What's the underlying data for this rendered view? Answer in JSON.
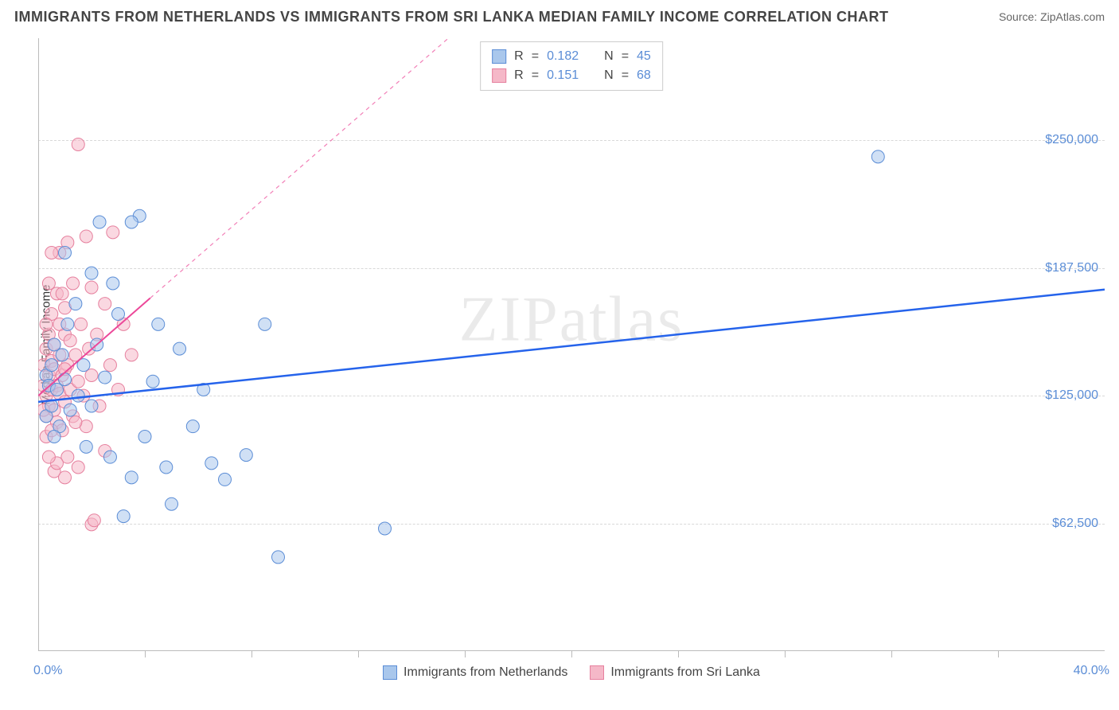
{
  "header": {
    "title": "IMMIGRANTS FROM NETHERLANDS VS IMMIGRANTS FROM SRI LANKA MEDIAN FAMILY INCOME CORRELATION CHART",
    "source": "Source: ZipAtlas.com"
  },
  "watermark": "ZIPatlas",
  "chart": {
    "type": "scatter-with-regression",
    "xlabel": "",
    "ylabel": "Median Family Income",
    "xlim": [
      0,
      40
    ],
    "ylim": [
      0,
      300000
    ],
    "x_tick_labels": {
      "start": "0.0%",
      "end": "40.0%"
    },
    "x_minor_ticks": [
      4,
      8,
      12,
      16,
      20,
      24,
      28,
      32,
      36
    ],
    "y_ticks": [
      62500,
      125000,
      187500,
      250000
    ],
    "y_tick_labels": [
      "$62,500",
      "$125,000",
      "$187,500",
      "$250,000"
    ],
    "grid_color": "#d8d8d8",
    "axis_color": "#bbbbbb",
    "background_color": "#ffffff",
    "tick_label_color": "#5b8dd6",
    "axis_label_color": "#333333",
    "marker_radius": 8,
    "marker_opacity": 0.55,
    "series": [
      {
        "name": "Immigrants from Netherlands",
        "fill_color": "#a9c7ec",
        "stroke_color": "#5b8dd6",
        "reg_line_color": "#2563eb",
        "reg_line_width": 2.5,
        "reg_line_dash": "none",
        "reg_line": {
          "x1": 0,
          "y1": 122000,
          "x2": 40,
          "y2": 177000
        },
        "stats": {
          "R": "0.182",
          "N": "45"
        },
        "points": [
          [
            0.3,
            115000
          ],
          [
            0.3,
            135000
          ],
          [
            0.4,
            130000
          ],
          [
            0.5,
            140000
          ],
          [
            0.5,
            120000
          ],
          [
            0.6,
            150000
          ],
          [
            0.7,
            128000
          ],
          [
            0.8,
            110000
          ],
          [
            0.9,
            145000
          ],
          [
            1.0,
            133000
          ],
          [
            1.1,
            160000
          ],
          [
            1.2,
            118000
          ],
          [
            1.4,
            170000
          ],
          [
            1.5,
            125000
          ],
          [
            1.7,
            140000
          ],
          [
            1.8,
            100000
          ],
          [
            2.0,
            185000
          ],
          [
            2.2,
            150000
          ],
          [
            2.3,
            210000
          ],
          [
            2.5,
            134000
          ],
          [
            2.7,
            95000
          ],
          [
            2.8,
            180000
          ],
          [
            3.0,
            165000
          ],
          [
            3.2,
            66000
          ],
          [
            3.5,
            85000
          ],
          [
            3.8,
            213000
          ],
          [
            4.0,
            105000
          ],
          [
            4.3,
            132000
          ],
          [
            4.5,
            160000
          ],
          [
            4.8,
            90000
          ],
          [
            5.0,
            72000
          ],
          [
            5.3,
            148000
          ],
          [
            5.8,
            110000
          ],
          [
            6.2,
            128000
          ],
          [
            6.5,
            92000
          ],
          [
            7.0,
            84000
          ],
          [
            7.8,
            96000
          ],
          [
            8.5,
            160000
          ],
          [
            9.0,
            46000
          ],
          [
            13.0,
            60000
          ],
          [
            31.5,
            242000
          ],
          [
            3.5,
            210000
          ],
          [
            1.0,
            195000
          ],
          [
            0.6,
            105000
          ],
          [
            2.0,
            120000
          ]
        ]
      },
      {
        "name": "Immigrants from Sri Lanka",
        "fill_color": "#f5b8c8",
        "stroke_color": "#e6809e",
        "reg_line_color": "#ec4899",
        "reg_line_width": 2,
        "reg_line_dash": "5,5",
        "reg_line": {
          "x1": 0,
          "y1": 125000,
          "x2": 40,
          "y2": 580000
        },
        "reg_line_solid_until_x": 4.2,
        "stats": {
          "R": "0.151",
          "N": "68"
        },
        "points": [
          [
            0.2,
            130000
          ],
          [
            0.2,
            140000
          ],
          [
            0.3,
            125000
          ],
          [
            0.3,
            148000
          ],
          [
            0.3,
            115000
          ],
          [
            0.4,
            135000
          ],
          [
            0.4,
            155000
          ],
          [
            0.4,
            120000
          ],
          [
            0.5,
            142000
          ],
          [
            0.5,
            128000
          ],
          [
            0.5,
            165000
          ],
          [
            0.6,
            118000
          ],
          [
            0.6,
            138000
          ],
          [
            0.6,
            150000
          ],
          [
            0.7,
            130000
          ],
          [
            0.7,
            175000
          ],
          [
            0.7,
            112000
          ],
          [
            0.8,
            145000
          ],
          [
            0.8,
            126000
          ],
          [
            0.8,
            195000
          ],
          [
            0.9,
            135000
          ],
          [
            0.9,
            108000
          ],
          [
            1.0,
            155000
          ],
          [
            1.0,
            122000
          ],
          [
            1.0,
            168000
          ],
          [
            1.1,
            140000
          ],
          [
            1.1,
            95000
          ],
          [
            1.2,
            152000
          ],
          [
            1.2,
            128000
          ],
          [
            1.3,
            180000
          ],
          [
            1.3,
            115000
          ],
          [
            1.4,
            145000
          ],
          [
            1.5,
            132000
          ],
          [
            1.5,
            90000
          ],
          [
            1.6,
            160000
          ],
          [
            1.7,
            125000
          ],
          [
            1.8,
            203000
          ],
          [
            1.8,
            110000
          ],
          [
            1.9,
            148000
          ],
          [
            2.0,
            135000
          ],
          [
            2.0,
            62000
          ],
          [
            2.1,
            64000
          ],
          [
            2.2,
            155000
          ],
          [
            2.3,
            120000
          ],
          [
            2.5,
            170000
          ],
          [
            2.5,
            98000
          ],
          [
            2.7,
            140000
          ],
          [
            2.8,
            205000
          ],
          [
            3.0,
            128000
          ],
          [
            3.2,
            160000
          ],
          [
            3.5,
            145000
          ],
          [
            0.4,
            180000
          ],
          [
            0.5,
            195000
          ],
          [
            0.3,
            105000
          ],
          [
            0.6,
            88000
          ],
          [
            1.0,
            85000
          ],
          [
            1.5,
            248000
          ],
          [
            0.9,
            175000
          ],
          [
            1.1,
            200000
          ],
          [
            0.7,
            92000
          ],
          [
            2.0,
            178000
          ],
          [
            0.5,
            108000
          ],
          [
            0.8,
            160000
          ],
          [
            1.4,
            112000
          ],
          [
            0.3,
            160000
          ],
          [
            0.4,
            95000
          ],
          [
            0.2,
            118000
          ],
          [
            1.0,
            138000
          ]
        ]
      }
    ],
    "legend_stats_labels": {
      "R": "R =",
      "N": "N =",
      "eq": "="
    },
    "bottom_legend": {
      "items": [
        {
          "label": "Immigrants from Netherlands",
          "fill": "#a9c7ec",
          "stroke": "#5b8dd6"
        },
        {
          "label": "Immigrants from Sri Lanka",
          "fill": "#f5b8c8",
          "stroke": "#e6809e"
        }
      ]
    }
  }
}
